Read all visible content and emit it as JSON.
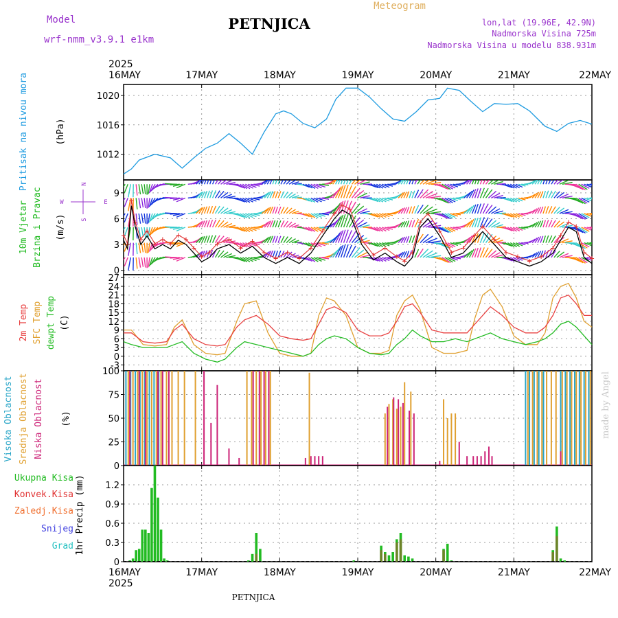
{
  "header": {
    "model_label": "Model",
    "model_name": "wrf-nmm_v3.9.1  e1km",
    "station": "PETNJICA",
    "meteogram": "Meteogram",
    "lonlat": "lon,lat (19.96E, 42.9N)",
    "altitude": "Nadmorska Visina 725m",
    "model_altitude": "Nadmorska Visina u modelu 838.931m"
  },
  "footer": {
    "station": "PETNJICA",
    "credit": "made by Angel"
  },
  "colors": {
    "pressure": "#1e9be0",
    "wind_label": "#22bb22",
    "t2m": "#e84040",
    "sfc": "#e0a030",
    "dewpt": "#22bb22",
    "high_cloud": "#2aa6c8",
    "mid_cloud": "#e0a030",
    "low_cloud": "#cc2277",
    "total_rain": "#22bb22",
    "conv_rain": "#e03030",
    "freezing": "#f07030",
    "snow": "#4040e0",
    "hail": "#22c0c0",
    "wind_dir": "#9933cc"
  },
  "time_axis": {
    "year": "2025",
    "days": [
      "16MAY",
      "17MAY",
      "18MAY",
      "19MAY",
      "20MAY",
      "21MAY",
      "22MAY"
    ]
  },
  "chart_data": [
    {
      "type": "line",
      "panel": "pressure",
      "ylabel": [
        "Pritisak na nivou mora",
        "(hPa)"
      ],
      "yticks": [
        1012,
        1016,
        1020
      ],
      "ylim": [
        1008.5,
        1021.5
      ],
      "grid": true,
      "series": [
        {
          "name": "Pritisak na nivou mora",
          "x": [
            0,
            0.1,
            0.2,
            0.4,
            0.6,
            0.75,
            0.9,
            1.05,
            1.2,
            1.35,
            1.5,
            1.65,
            1.8,
            1.95,
            2.05,
            2.15,
            2.3,
            2.45,
            2.6,
            2.72,
            2.85,
            3.0,
            3.15,
            3.3,
            3.45,
            3.6,
            3.75,
            3.9,
            4.05,
            4.15,
            4.3,
            4.45,
            4.6,
            4.75,
            4.9,
            5.05,
            5.2,
            5.4,
            5.55,
            5.7,
            5.85,
            6.0
          ],
          "y": [
            1009.3,
            1010,
            1011.2,
            1012,
            1011.5,
            1010.1,
            1011.5,
            1012.8,
            1013.5,
            1014.8,
            1013.5,
            1012,
            1015,
            1017.5,
            1017.9,
            1017.5,
            1016.2,
            1015.6,
            1016.8,
            1019.5,
            1021,
            1021,
            1019.8,
            1018.2,
            1016.8,
            1016.5,
            1017.8,
            1019.4,
            1019.6,
            1021,
            1020.7,
            1019.2,
            1017.8,
            1018.9,
            1018.8,
            1018.9,
            1017.9,
            1015.8,
            1015.1,
            1016.2,
            1016.6,
            1016.1
          ]
        }
      ]
    },
    {
      "type": "line",
      "panel": "wind",
      "ylabel": [
        "10m Vjetar",
        "Brzina i Pravac",
        "(m/s)"
      ],
      "compass": [
        "N",
        "W",
        "E",
        "S"
      ],
      "yticks": [
        0,
        3,
        6,
        9
      ],
      "ylim": [
        -0.5,
        10.5
      ],
      "grid": true,
      "series": [
        {
          "name": "speed",
          "x": [
            0,
            0.05,
            0.1,
            0.15,
            0.22,
            0.3,
            0.4,
            0.5,
            0.6,
            0.7,
            0.8,
            0.9,
            1.0,
            1.1,
            1.2,
            1.35,
            1.5,
            1.65,
            1.8,
            1.95,
            2.1,
            2.25,
            2.4,
            2.55,
            2.7,
            2.8,
            2.9,
            3.05,
            3.2,
            3.35,
            3.5,
            3.6,
            3.7,
            3.8,
            3.9,
            4.05,
            4.2,
            4.35,
            4.5,
            4.6,
            4.75,
            4.9,
            5.05,
            5.2,
            5.35,
            5.5,
            5.6,
            5.7,
            5.8,
            5.9,
            6.0
          ],
          "y": [
            3.5,
            2.5,
            7.5,
            5.0,
            3.0,
            4.0,
            2.5,
            3.0,
            2.5,
            3.5,
            3.0,
            2.0,
            1.0,
            1.5,
            2.5,
            3.0,
            2.0,
            2.8,
            1.5,
            0.8,
            1.5,
            0.8,
            2.0,
            4.0,
            6.0,
            7.0,
            6.5,
            3.0,
            1.2,
            2.0,
            1.0,
            0.5,
            1.5,
            5.0,
            6.0,
            4.0,
            1.5,
            2.0,
            3.5,
            4.5,
            3.0,
            1.5,
            1.0,
            0.5,
            1.0,
            2.0,
            3.5,
            5.0,
            4.5,
            1.5,
            0.8
          ]
        }
      ]
    },
    {
      "type": "line",
      "panel": "temperature",
      "ylabel": [
        "2m Temp",
        "SFC Temp",
        "dewpt Temp",
        "(C)"
      ],
      "yticks": [
        -3,
        0,
        3,
        6,
        9,
        12,
        15,
        18,
        21,
        24,
        27
      ],
      "ylim": [
        -5,
        28
      ],
      "grid": true,
      "series": [
        {
          "name": "2m Temp",
          "x": [
            0,
            0.1,
            0.25,
            0.4,
            0.55,
            0.65,
            0.75,
            0.9,
            1.05,
            1.2,
            1.3,
            1.45,
            1.55,
            1.7,
            1.85,
            2.0,
            2.15,
            2.3,
            2.4,
            2.5,
            2.6,
            2.7,
            2.85,
            3.0,
            3.15,
            3.3,
            3.4,
            3.5,
            3.6,
            3.7,
            3.8,
            3.95,
            4.1,
            4.25,
            4.4,
            4.5,
            4.6,
            4.7,
            4.85,
            5.0,
            5.15,
            5.3,
            5.4,
            5.5,
            5.6,
            5.7,
            5.8,
            5.9,
            6.0
          ],
          "y": [
            8,
            8,
            5,
            4.5,
            5,
            9,
            11,
            6,
            4,
            3.5,
            4,
            10,
            12.5,
            14,
            11,
            7,
            6,
            5.5,
            6,
            11,
            16,
            17,
            15,
            9,
            7,
            7,
            8,
            12,
            17,
            18,
            15,
            9,
            8,
            8,
            8,
            11,
            14,
            17,
            14,
            10,
            8,
            8,
            10,
            14,
            20,
            21,
            18,
            14,
            14
          ]
        },
        {
          "name": "SFC Temp",
          "x": [
            0,
            0.1,
            0.25,
            0.4,
            0.55,
            0.65,
            0.75,
            0.9,
            1.05,
            1.2,
            1.3,
            1.45,
            1.55,
            1.7,
            1.85,
            2.0,
            2.15,
            2.3,
            2.4,
            2.5,
            2.6,
            2.7,
            2.85,
            3.0,
            3.15,
            3.3,
            3.4,
            3.5,
            3.6,
            3.7,
            3.8,
            3.95,
            4.1,
            4.25,
            4.4,
            4.5,
            4.6,
            4.7,
            4.85,
            5.0,
            5.15,
            5.3,
            5.4,
            5.5,
            5.6,
            5.7,
            5.8,
            5.9,
            6.0
          ],
          "y": [
            9,
            9,
            4,
            3.5,
            4,
            10,
            12.5,
            4,
            1,
            0.5,
            1,
            12,
            18,
            19,
            8,
            1,
            0,
            0,
            1,
            14,
            20,
            19,
            14,
            3,
            1,
            1,
            2,
            14,
            19,
            21,
            16,
            3,
            1,
            1,
            2,
            13,
            21,
            23,
            17,
            7,
            4,
            4,
            8,
            20,
            24,
            25,
            20,
            12,
            10
          ]
        },
        {
          "name": "dewpt Temp",
          "x": [
            0,
            0.1,
            0.25,
            0.4,
            0.55,
            0.65,
            0.75,
            0.9,
            1.05,
            1.2,
            1.3,
            1.45,
            1.55,
            1.7,
            1.85,
            2.0,
            2.15,
            2.3,
            2.4,
            2.5,
            2.6,
            2.7,
            2.85,
            3.0,
            3.15,
            3.3,
            3.4,
            3.5,
            3.6,
            3.7,
            3.8,
            3.95,
            4.1,
            4.25,
            4.4,
            4.5,
            4.6,
            4.7,
            4.85,
            5.0,
            5.15,
            5.3,
            5.4,
            5.5,
            5.6,
            5.7,
            5.8,
            5.9,
            6.0
          ],
          "y": [
            5,
            4,
            3,
            3,
            3,
            4,
            5,
            1,
            -1,
            -2,
            -1,
            3,
            5,
            4,
            3,
            2,
            1,
            0,
            1,
            4,
            6,
            7,
            6,
            3,
            1,
            0.5,
            1,
            4,
            6,
            9,
            7,
            5,
            5,
            6,
            5,
            6,
            7,
            8,
            6,
            5,
            4,
            5,
            6,
            8,
            11,
            12,
            10,
            7,
            4
          ]
        }
      ]
    },
    {
      "type": "bar",
      "panel": "clouds",
      "ylabel": [
        "Visoka Oblacnost",
        "Srednja Oblacnost",
        "Niska Oblacnost",
        "(%)"
      ],
      "yticks": [
        0,
        25,
        50,
        75,
        100
      ],
      "ylim": [
        0,
        100
      ],
      "grid": true,
      "series": [
        {
          "name": "Visoka Oblacnost",
          "x": [
            0.03,
            0.09,
            0.15,
            0.21,
            0.27,
            0.33,
            0.39,
            0.45,
            5.15,
            5.2,
            5.26,
            5.32,
            5.38,
            5.6,
            5.66,
            5.72,
            5.78,
            5.84,
            5.9,
            5.96
          ],
          "y": [
            100,
            100,
            100,
            100,
            100,
            100,
            100,
            100,
            100,
            100,
            100,
            100,
            100,
            100,
            100,
            100,
            100,
            100,
            100,
            100
          ]
        },
        {
          "name": "Srednja Oblacnost",
          "x": [
            0.06,
            0.12,
            0.18,
            0.24,
            0.3,
            0.36,
            0.42,
            0.48,
            0.55,
            0.62,
            0.7,
            0.78,
            0.92,
            1.58,
            1.64,
            1.7,
            1.76,
            1.82,
            1.88,
            2.38,
            3.35,
            3.4,
            3.45,
            3.5,
            3.55,
            3.6,
            3.68,
            4.1,
            4.15,
            4.2,
            4.25,
            5.18,
            5.24,
            5.3,
            5.36,
            5.42,
            5.48,
            5.54,
            5.62,
            5.68,
            5.74,
            5.8,
            5.86,
            5.92,
            5.98
          ],
          "y": [
            100,
            100,
            100,
            100,
            100,
            100,
            100,
            100,
            100,
            100,
            100,
            100,
            100,
            100,
            100,
            100,
            100,
            100,
            100,
            98,
            55,
            65,
            70,
            60,
            62,
            88,
            78,
            70,
            50,
            55,
            55,
            100,
            100,
            100,
            100,
            100,
            100,
            100,
            100,
            100,
            100,
            100,
            100,
            100,
            100
          ]
        },
        {
          "name": "Niska Oblacnost",
          "x": [
            0.08,
            0.2,
            0.28,
            0.44,
            0.5,
            0.58,
            1.03,
            1.12,
            1.2,
            1.35,
            1.48,
            1.66,
            1.74,
            1.8,
            1.86,
            2.33,
            2.4,
            2.45,
            2.5,
            2.55,
            3.38,
            3.46,
            3.52,
            3.58,
            3.66,
            3.72,
            4.05,
            4.3,
            4.4,
            4.48,
            4.53,
            4.58,
            4.63,
            4.68,
            4.72,
            5.6
          ],
          "y": [
            100,
            100,
            100,
            100,
            100,
            100,
            100,
            45,
            85,
            18,
            8,
            100,
            100,
            100,
            100,
            8,
            10,
            10,
            10,
            10,
            62,
            72,
            70,
            66,
            58,
            55,
            5,
            25,
            10,
            10,
            10,
            10,
            15,
            20,
            10,
            15
          ]
        }
      ]
    },
    {
      "type": "bar",
      "panel": "precipitation",
      "ylabel": [
        "1hr Precip (mm)"
      ],
      "legend": [
        "Ukupna Kisa",
        "Konvek.Kisa",
        "Zaledj.Kisa",
        "Snijeg",
        "Grad"
      ],
      "yticks": [
        0,
        0.3,
        0.6,
        0.9,
        1.2
      ],
      "ylim": [
        0,
        1.5
      ],
      "grid": true,
      "series": [
        {
          "name": "Ukupna Kisa",
          "x": [
            0.08,
            0.12,
            0.16,
            0.2,
            0.24,
            0.28,
            0.32,
            0.36,
            0.4,
            0.44,
            0.48,
            0.52,
            0.56,
            1.6,
            1.65,
            1.7,
            1.75,
            2.95,
            3.3,
            3.35,
            3.4,
            3.45,
            3.5,
            3.55,
            3.6,
            3.65,
            3.7,
            4.1,
            4.15,
            4.2,
            5.5,
            5.55,
            5.6,
            5.65
          ],
          "y": [
            0.02,
            0.05,
            0.18,
            0.2,
            0.5,
            0.5,
            0.45,
            1.15,
            1.5,
            1.0,
            0.5,
            0.05,
            0.02,
            0.02,
            0.12,
            0.45,
            0.2,
            0.02,
            0.25,
            0.15,
            0.1,
            0.15,
            0.35,
            0.45,
            0.1,
            0.08,
            0.05,
            0.2,
            0.28,
            0.02,
            0.18,
            0.55,
            0.05,
            0.02
          ]
        },
        {
          "name": "Konvek.Kisa",
          "x": [
            1.7,
            3.3,
            3.35,
            3.5,
            3.55,
            4.1,
            5.5,
            5.55
          ],
          "y": [
            0.12,
            0.18,
            0.12,
            0.3,
            0.35,
            0.18,
            0.15,
            0.4
          ]
        }
      ]
    }
  ]
}
